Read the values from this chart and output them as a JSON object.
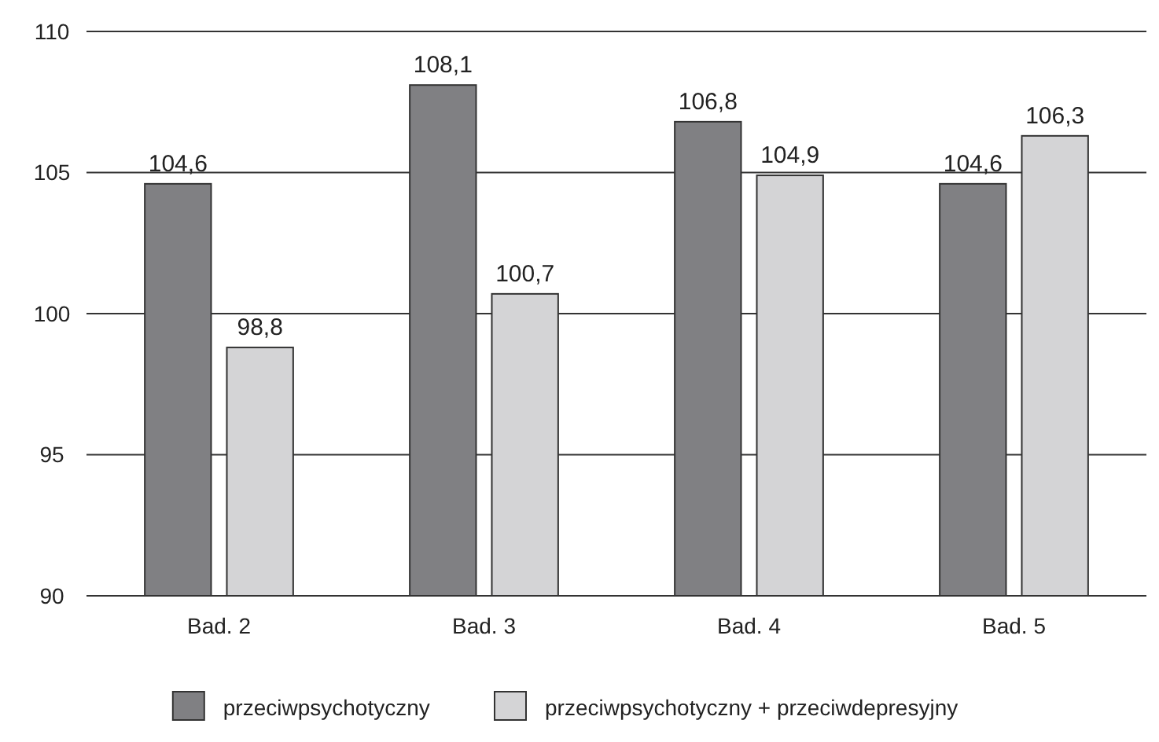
{
  "chart_data": {
    "type": "bar",
    "categories": [
      "Bad. 2",
      "Bad. 3",
      "Bad. 4",
      "Bad. 5"
    ],
    "series": [
      {
        "name": "przeciwpsychotyczny",
        "color": "#808083",
        "values": [
          104.6,
          108.1,
          106.8,
          104.6
        ],
        "value_labels": [
          "104,6",
          "108,1",
          "106,8",
          "104,6"
        ]
      },
      {
        "name": "przeciwpsychotyczny + przeciwdepresyjny",
        "color": "#d4d4d6",
        "values": [
          98.8,
          100.7,
          104.9,
          106.3
        ],
        "value_labels": [
          "98,8",
          "100,7",
          "104,9",
          "106,3"
        ]
      }
    ],
    "ylim": [
      90,
      110
    ],
    "yticks": [
      90,
      95,
      100,
      105,
      110
    ],
    "grid": "y",
    "legend": "bottom"
  }
}
